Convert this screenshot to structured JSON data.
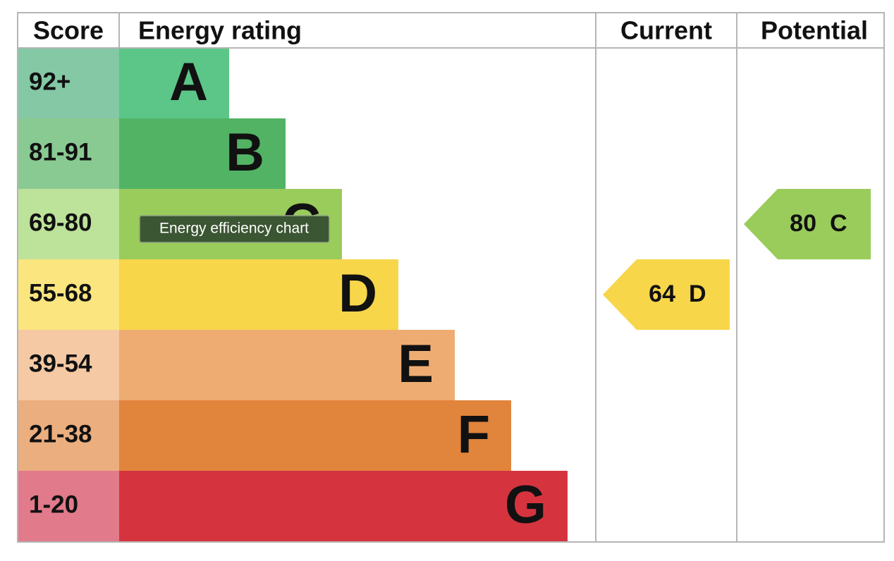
{
  "header": {
    "score": "Score",
    "energy_rating": "Energy rating",
    "current": "Current",
    "potential": "Potential"
  },
  "rows": [
    {
      "score": "92+",
      "rating": "A"
    },
    {
      "score": "81-91",
      "rating": "B"
    },
    {
      "score": "69-80",
      "rating": "C"
    },
    {
      "score": "55-68",
      "rating": "D"
    },
    {
      "score": "39-54",
      "rating": "E"
    },
    {
      "score": "21-38",
      "rating": "F"
    },
    {
      "score": "1-20",
      "rating": "G"
    }
  ],
  "current": {
    "score": "64",
    "rating": "D"
  },
  "potential": {
    "score": "80",
    "rating": "C"
  },
  "tooltip": "Energy efficiency chart"
}
